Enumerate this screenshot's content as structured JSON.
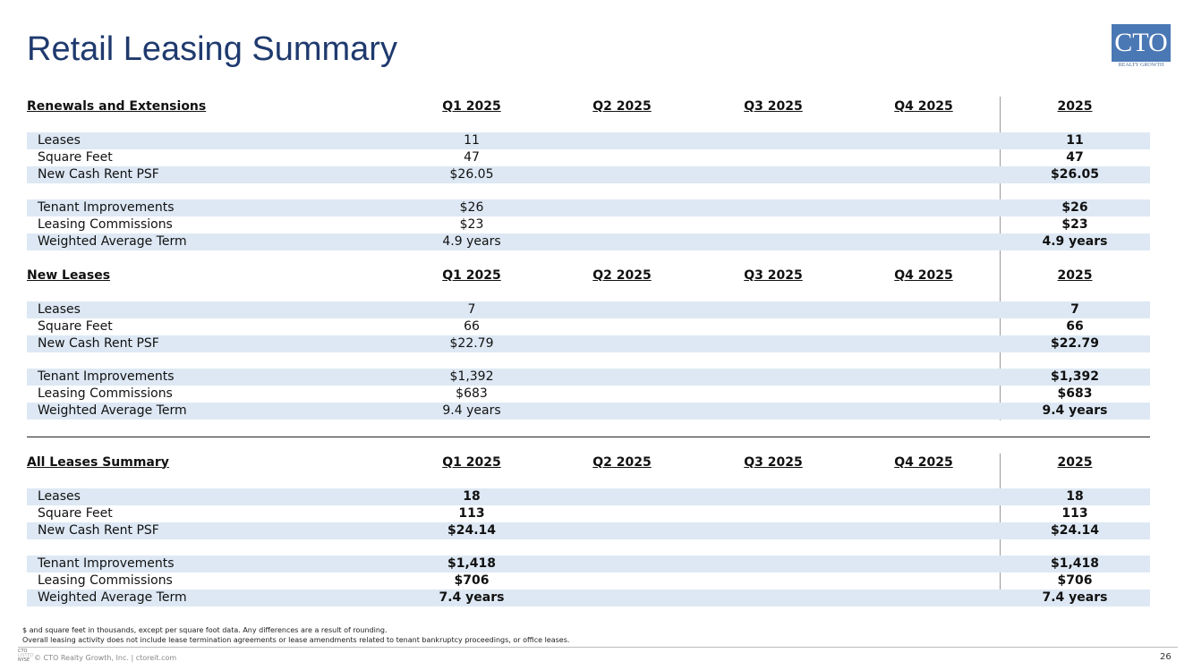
{
  "header": {
    "title": "Retail Leasing Summary",
    "logo": {
      "mark": "CTO",
      "tagline": "REALTY GROWTH"
    }
  },
  "sections": [
    {
      "title": "Renewals and Extensions",
      "columns": [
        "Q1 2025",
        "Q2 2025",
        "Q3 2025",
        "Q4 2025",
        "2025"
      ],
      "groups": [
        [
          [
            "Leases",
            "11",
            "11"
          ],
          [
            "Square Feet",
            "47",
            "47"
          ],
          [
            "New Cash Rent PSF",
            "$26.05",
            "$26.05"
          ]
        ],
        [
          [
            "Tenant Improvements",
            "$26",
            "$26"
          ],
          [
            "Leasing Commissions",
            "$23",
            "$23"
          ],
          [
            "Weighted Average Term",
            "4.9 years",
            "4.9 years"
          ]
        ]
      ]
    },
    {
      "title": "New Leases",
      "columns": [
        "Q1 2025",
        "Q2 2025",
        "Q3 2025",
        "Q4 2025",
        "2025"
      ],
      "groups": [
        [
          [
            "Leases",
            "7",
            "7"
          ],
          [
            "Square Feet",
            "66",
            "66"
          ],
          [
            "New Cash Rent PSF",
            "$22.79",
            "$22.79"
          ]
        ],
        [
          [
            "Tenant Improvements",
            "$1,392",
            "$1,392"
          ],
          [
            "Leasing Commissions",
            "$683",
            "$683"
          ],
          [
            "Weighted Average Term",
            "9.4 years",
            "9.4 years"
          ]
        ]
      ]
    },
    {
      "title": "All Leases Summary",
      "columns": [
        "Q1 2025",
        "Q2 2025",
        "Q3 2025",
        "Q4 2025",
        "2025"
      ],
      "groups": [
        [
          [
            "Leases",
            "18",
            "18"
          ],
          [
            "Square Feet",
            "113",
            "113"
          ],
          [
            "New Cash Rent PSF",
            "$24.14",
            "$24.14"
          ]
        ],
        [
          [
            "Tenant Improvements",
            "$1,418",
            "$1,418"
          ],
          [
            "Leasing Commissions",
            "$706",
            "$706"
          ],
          [
            "Weighted Average Term",
            "7.4 years",
            "7.4 years"
          ]
        ]
      ]
    }
  ],
  "footnotes": [
    "$ and square feet in thousands, except per square foot data. Any differences are a result of rounding.",
    "Overall leasing activity does not include lease termination agreements or lease amendments related to tenant bankruptcy proceedings, or office leases."
  ],
  "footer": {
    "badge": [
      "CTO",
      "LISTED",
      "NYSE"
    ],
    "copyright": "© CTO Realty Growth, Inc. | ctoreit.com",
    "page": "26"
  }
}
